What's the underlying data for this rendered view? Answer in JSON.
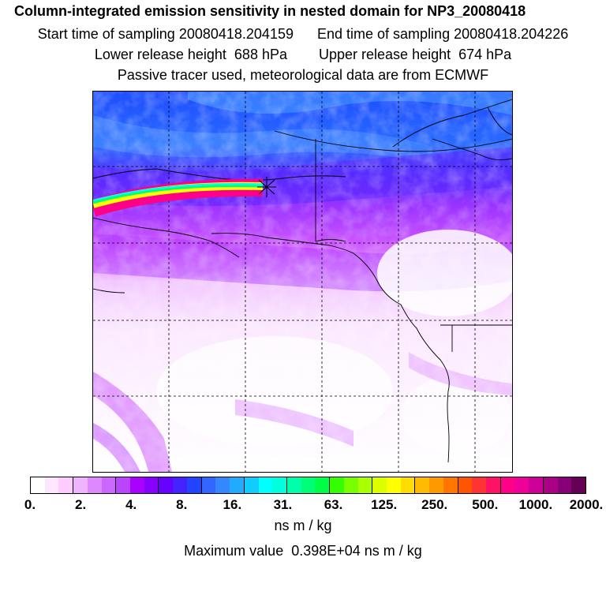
{
  "header": {
    "title": "Column-integrated emission sensitivity in nested domain for NP3_20080418",
    "start_label": "Start time of sampling 20080418.204159",
    "end_label": "End time of sampling 20080418.204226",
    "lower_label": "Lower release height  688 hPa",
    "upper_label": "Upper release height  674 hPa",
    "note": "Passive tracer used, meteorological data are from ECMWF"
  },
  "colorbar": {
    "tick_labels": [
      "0.",
      "2.",
      "4.",
      "8.",
      "16.",
      "31.",
      "63.",
      "125.",
      "250.",
      "500.",
      "1000.",
      "2000."
    ],
    "colors": [
      "#ffffff",
      "#ffe6ff",
      "#ffccff",
      "#f0b3ff",
      "#dd88ff",
      "#cc66ff",
      "#bb44ff",
      "#aa00ff",
      "#8800ff",
      "#6600ff",
      "#4422ff",
      "#2244ff",
      "#3366ff",
      "#3388ff",
      "#22aaff",
      "#11ccff",
      "#00ffff",
      "#00ffdd",
      "#00ffaa",
      "#00ff77",
      "#00ff44",
      "#33ff00",
      "#77ff00",
      "#aaff00",
      "#ddff00",
      "#ffff00",
      "#ffdd00",
      "#ffbb00",
      "#ff9900",
      "#ff7700",
      "#ff5500",
      "#ff3333",
      "#ff1166",
      "#ff0088",
      "#ee0099",
      "#cc0099",
      "#aa0088",
      "#880077",
      "#660055"
    ],
    "unit": "ns m / kg",
    "max_value": "Maximum value  0.398E+04 ns m / kg"
  },
  "map": {
    "background_color": "#ffffff",
    "ocean_low_color": "#ffccff",
    "arctic_color": "#2255ff",
    "trajectory_colors": [
      "#ff0088",
      "#ffff00",
      "#00ff77",
      "#00ffff"
    ]
  }
}
